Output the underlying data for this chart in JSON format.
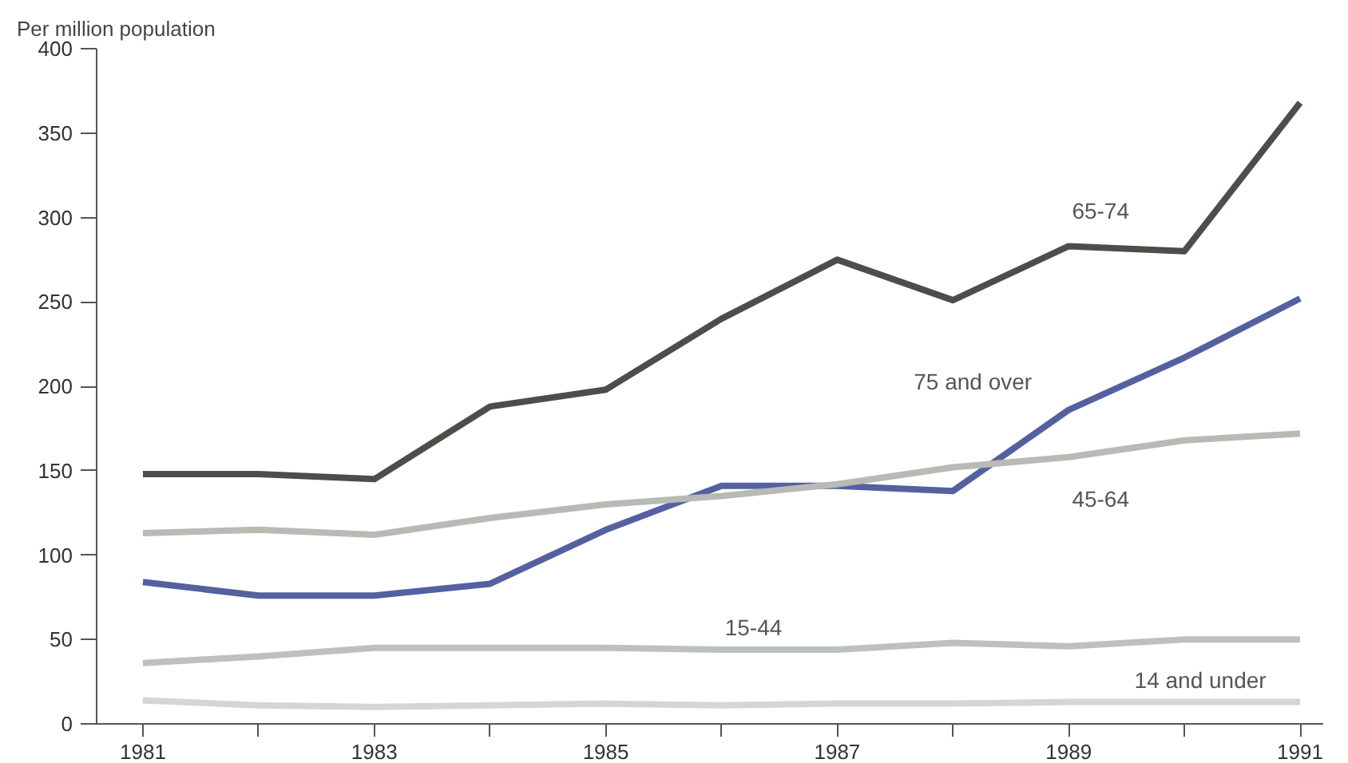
{
  "chart_data": {
    "type": "line",
    "ylabel": "Per million population",
    "x": [
      1981,
      1982,
      1983,
      1984,
      1985,
      1986,
      1987,
      1988,
      1989,
      1990,
      1991
    ],
    "series": [
      {
        "name": "65-74",
        "color": "#4a4f4a",
        "values": [
          148,
          148,
          145,
          188,
          198,
          240,
          275,
          251,
          283,
          280,
          368
        ]
      },
      {
        "name": "75 and over",
        "color": "#5560a0",
        "values": [
          84,
          76,
          76,
          83,
          115,
          141,
          141,
          138,
          186,
          217,
          252
        ]
      },
      {
        "name": "45-64",
        "color": "#b8bab4",
        "values": [
          113,
          115,
          112,
          122,
          130,
          135,
          142,
          152,
          158,
          168,
          172
        ]
      },
      {
        "name": "15-44",
        "color": "#bcc0bf",
        "values": [
          36,
          40,
          45,
          45,
          45,
          44,
          44,
          48,
          46,
          50,
          50
        ]
      },
      {
        "name": "14 and under",
        "color": "#d5d6d2",
        "values": [
          14,
          11,
          10,
          11,
          12,
          11,
          12,
          12,
          13,
          13,
          13
        ]
      }
    ],
    "xlim": [
      1980.6,
      1991.2
    ],
    "ylim": [
      0,
      400
    ],
    "xticks": [
      1981,
      {
        "value": 1982,
        "label": null
      },
      1983,
      {
        "value": 1984,
        "label": null
      },
      1985,
      {
        "value": 1986,
        "label": null
      },
      1987,
      {
        "value": 1988,
        "label": null
      },
      1989,
      {
        "value": 1990,
        "label": null
      },
      1991
    ],
    "yticks": [
      0,
      50,
      100,
      150,
      200,
      250,
      300,
      350,
      400
    ],
    "grid": false,
    "marker": "none",
    "line_style": "solid"
  }
}
